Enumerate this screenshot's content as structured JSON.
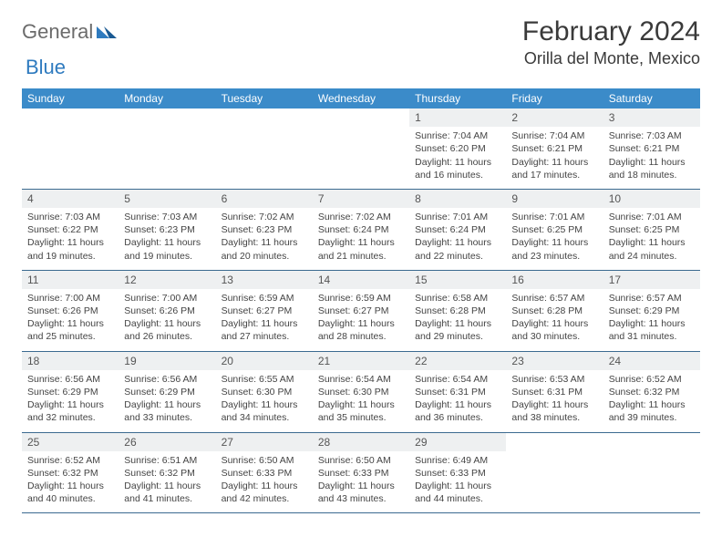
{
  "logo": {
    "word1": "General",
    "word2": "Blue"
  },
  "title": "February 2024",
  "location": "Orilla del Monte, Mexico",
  "colors": {
    "header_bg": "#3b8bc9",
    "header_text": "#ffffff",
    "daynum_bg": "#eef0f1",
    "row_border": "#3b6a90",
    "body_text": "#444444",
    "logo_gray": "#6b6b6b",
    "logo_blue": "#2f7bbf"
  },
  "weekdays": [
    "Sunday",
    "Monday",
    "Tuesday",
    "Wednesday",
    "Thursday",
    "Friday",
    "Saturday"
  ],
  "calendar": {
    "first_weekday_index": 4,
    "num_days": 29
  },
  "days": {
    "1": {
      "sunrise": "7:04 AM",
      "sunset": "6:20 PM",
      "daylight": "11 hours and 16 minutes."
    },
    "2": {
      "sunrise": "7:04 AM",
      "sunset": "6:21 PM",
      "daylight": "11 hours and 17 minutes."
    },
    "3": {
      "sunrise": "7:03 AM",
      "sunset": "6:21 PM",
      "daylight": "11 hours and 18 minutes."
    },
    "4": {
      "sunrise": "7:03 AM",
      "sunset": "6:22 PM",
      "daylight": "11 hours and 19 minutes."
    },
    "5": {
      "sunrise": "7:03 AM",
      "sunset": "6:23 PM",
      "daylight": "11 hours and 19 minutes."
    },
    "6": {
      "sunrise": "7:02 AM",
      "sunset": "6:23 PM",
      "daylight": "11 hours and 20 minutes."
    },
    "7": {
      "sunrise": "7:02 AM",
      "sunset": "6:24 PM",
      "daylight": "11 hours and 21 minutes."
    },
    "8": {
      "sunrise": "7:01 AM",
      "sunset": "6:24 PM",
      "daylight": "11 hours and 22 minutes."
    },
    "9": {
      "sunrise": "7:01 AM",
      "sunset": "6:25 PM",
      "daylight": "11 hours and 23 minutes."
    },
    "10": {
      "sunrise": "7:01 AM",
      "sunset": "6:25 PM",
      "daylight": "11 hours and 24 minutes."
    },
    "11": {
      "sunrise": "7:00 AM",
      "sunset": "6:26 PM",
      "daylight": "11 hours and 25 minutes."
    },
    "12": {
      "sunrise": "7:00 AM",
      "sunset": "6:26 PM",
      "daylight": "11 hours and 26 minutes."
    },
    "13": {
      "sunrise": "6:59 AM",
      "sunset": "6:27 PM",
      "daylight": "11 hours and 27 minutes."
    },
    "14": {
      "sunrise": "6:59 AM",
      "sunset": "6:27 PM",
      "daylight": "11 hours and 28 minutes."
    },
    "15": {
      "sunrise": "6:58 AM",
      "sunset": "6:28 PM",
      "daylight": "11 hours and 29 minutes."
    },
    "16": {
      "sunrise": "6:57 AM",
      "sunset": "6:28 PM",
      "daylight": "11 hours and 30 minutes."
    },
    "17": {
      "sunrise": "6:57 AM",
      "sunset": "6:29 PM",
      "daylight": "11 hours and 31 minutes."
    },
    "18": {
      "sunrise": "6:56 AM",
      "sunset": "6:29 PM",
      "daylight": "11 hours and 32 minutes."
    },
    "19": {
      "sunrise": "6:56 AM",
      "sunset": "6:29 PM",
      "daylight": "11 hours and 33 minutes."
    },
    "20": {
      "sunrise": "6:55 AM",
      "sunset": "6:30 PM",
      "daylight": "11 hours and 34 minutes."
    },
    "21": {
      "sunrise": "6:54 AM",
      "sunset": "6:30 PM",
      "daylight": "11 hours and 35 minutes."
    },
    "22": {
      "sunrise": "6:54 AM",
      "sunset": "6:31 PM",
      "daylight": "11 hours and 36 minutes."
    },
    "23": {
      "sunrise": "6:53 AM",
      "sunset": "6:31 PM",
      "daylight": "11 hours and 38 minutes."
    },
    "24": {
      "sunrise": "6:52 AM",
      "sunset": "6:32 PM",
      "daylight": "11 hours and 39 minutes."
    },
    "25": {
      "sunrise": "6:52 AM",
      "sunset": "6:32 PM",
      "daylight": "11 hours and 40 minutes."
    },
    "26": {
      "sunrise": "6:51 AM",
      "sunset": "6:32 PM",
      "daylight": "11 hours and 41 minutes."
    },
    "27": {
      "sunrise": "6:50 AM",
      "sunset": "6:33 PM",
      "daylight": "11 hours and 42 minutes."
    },
    "28": {
      "sunrise": "6:50 AM",
      "sunset": "6:33 PM",
      "daylight": "11 hours and 43 minutes."
    },
    "29": {
      "sunrise": "6:49 AM",
      "sunset": "6:33 PM",
      "daylight": "11 hours and 44 minutes."
    }
  },
  "labels": {
    "sunrise_prefix": "Sunrise: ",
    "sunset_prefix": "Sunset: ",
    "daylight_prefix": "Daylight: "
  }
}
